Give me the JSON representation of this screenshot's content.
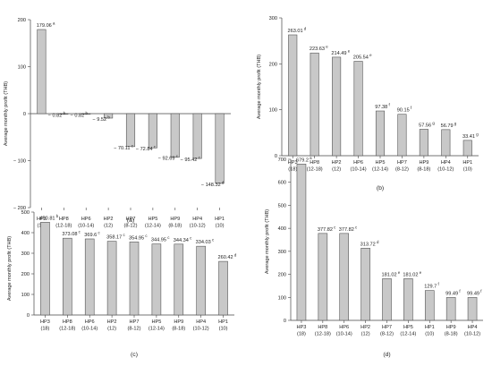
{
  "chart_data": [
    {
      "panel": "(a)",
      "type": "bar",
      "ylabel": "Average monthly profit (THB)",
      "ylim": [
        -200,
        200
      ],
      "yticks": [
        -200,
        -100,
        0,
        100,
        200
      ],
      "ytick_labels": [
        "− 200",
        "− 100",
        "0",
        "100",
        "200"
      ],
      "categories": [
        "HP3",
        "HP8",
        "HP6",
        "HP2",
        "HP7",
        "HP5",
        "HP9",
        "HP4",
        "HP1"
      ],
      "subcategories": [
        "(18)",
        "(12-18)",
        "(10-14)",
        "(12)",
        "(8-12)",
        "(12-14)",
        "(8-18)",
        "(10-12)",
        "(10)"
      ],
      "values": [
        179.06,
        -0.82,
        -0.82,
        -9.52,
        -70.11,
        -72.84,
        -92.69,
        -95.42,
        -148.32
      ],
      "value_labels": [
        "179.06",
        "− 0.82",
        "− 0.82",
        "− 9.52",
        "− 70.11",
        "− 72.84",
        "− 92.69",
        "− 95.42",
        "− 148.32"
      ],
      "letters": [
        "a",
        "b",
        "b",
        "b",
        "c",
        "c",
        "c",
        "c",
        "d"
      ]
    },
    {
      "panel": "(b)",
      "type": "bar",
      "ylabel": "Average monthly profit (THB)",
      "ylim": [
        0,
        300
      ],
      "yticks": [
        0,
        100,
        200,
        300
      ],
      "ytick_labels": [
        "0",
        "100",
        "200",
        "300"
      ],
      "categories": [
        "HP3",
        "HP8",
        "HP2",
        "HP6",
        "HP5",
        "HP7",
        "HP9",
        "HP4",
        "HP1"
      ],
      "subcategories": [
        "(18)",
        "(12-18)",
        "(12)",
        "(10-14)",
        "(12-14)",
        "(8-12)",
        "(8-18)",
        "(10-12)",
        "(10)"
      ],
      "values": [
        263.01,
        223.63,
        214.49,
        205.54,
        97.38,
        90.15,
        57.56,
        56.79,
        33.41
      ],
      "value_labels": [
        "263.01",
        "223.63",
        "214.49",
        "205.54",
        "97.38",
        "90.15",
        "57.56",
        "56.79",
        "33.41"
      ],
      "letters": [
        "d",
        "e",
        "e",
        "e",
        "f",
        "f",
        "g",
        "g",
        "g"
      ]
    },
    {
      "panel": "(c)",
      "type": "bar",
      "ylabel": "Average monthly profit (THB)",
      "ylim": [
        0,
        500
      ],
      "yticks": [
        0,
        100,
        200,
        300,
        400,
        500
      ],
      "ytick_labels": [
        "0",
        "100",
        "200",
        "300",
        "400",
        "500"
      ],
      "categories": [
        "HP3",
        "HP8",
        "HP6",
        "HP2",
        "HP7",
        "HP5",
        "HP9",
        "HP4",
        "HP1"
      ],
      "subcategories": [
        "(18)",
        "(12-18)",
        "(10-14)",
        "(12)",
        "(8-12)",
        "(12-14)",
        "(8-18)",
        "(10-12)",
        "(10)"
      ],
      "values": [
        450.81,
        373.08,
        369.6,
        358.17,
        354.95,
        344.95,
        344.34,
        334.03,
        260.42
      ],
      "value_labels": [
        "450.81",
        "373.08",
        "369.6",
        "358.17",
        "354.95",
        "344.95",
        "344.34",
        "334.03",
        "260.42"
      ],
      "letters": [
        "b",
        "c",
        "c",
        "c",
        "c",
        "c",
        "c",
        "c",
        "d"
      ]
    },
    {
      "panel": "(d)",
      "type": "bar",
      "ylabel": "Average monthly profit (THB)",
      "ylim": [
        0,
        700
      ],
      "yticks": [
        0,
        100,
        200,
        300,
        400,
        500,
        600,
        700
      ],
      "ytick_labels": [
        "0",
        "100",
        "200",
        "300",
        "400",
        "500",
        "600",
        "700"
      ],
      "categories": [
        "HP3",
        "HP8",
        "HP6",
        "HP2",
        "HP7",
        "HP5",
        "HP1",
        "HP9",
        "HP4"
      ],
      "subcategories": [
        "(18)",
        "(12-18)",
        "(10-14)",
        "(12)",
        "(8-12)",
        "(12-14)",
        "(10)",
        "(8-18)",
        "(10-12)"
      ],
      "values": [
        679.2,
        377.82,
        377.82,
        313.72,
        181.02,
        181.02,
        129.7,
        99.49,
        99.49
      ],
      "value_labels": [
        "679.2",
        "377.82",
        "377.82",
        "313.72",
        "181.02",
        "181.02",
        "129.7",
        "99.49",
        "99.49"
      ],
      "letters": [
        "a",
        "c",
        "c",
        "d",
        "e",
        "e",
        "f",
        "f",
        "f"
      ]
    }
  ],
  "colors": {
    "bar_fill": "#c8c8c8",
    "bar_stroke": "#555555",
    "axis": "#444444"
  }
}
